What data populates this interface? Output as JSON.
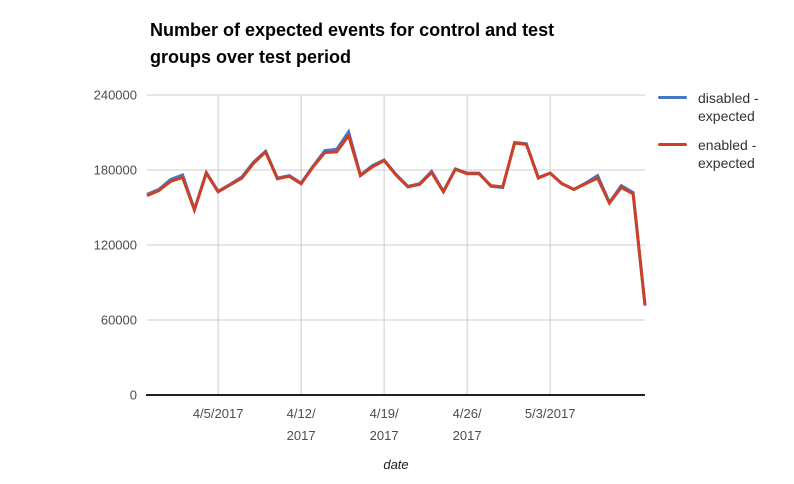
{
  "title": {
    "text": "Number of expected events for control and test groups over test period",
    "lines": [
      "Number of expected events for control and test",
      "groups over test period"
    ]
  },
  "legend": {
    "items": [
      {
        "label": "disabled - expected",
        "lines": [
          "disabled -",
          "expected"
        ],
        "color": "#4577c8"
      },
      {
        "label": "enabled - expected",
        "lines": [
          "enabled -",
          "expected"
        ],
        "color": "#cc4125"
      }
    ]
  },
  "axes": {
    "x_title": "date",
    "y_tick_labels": [
      "0",
      "60000",
      "120000",
      "180000",
      "240000"
    ],
    "x_tick_labels": [
      "4/5/2017",
      "4/12/2017",
      "4/19/2017",
      "4/26/2017",
      "5/3/2017"
    ]
  },
  "colors": {
    "gridline": "#cccccc",
    "baseline": "#212121",
    "tick_text": "#4d4d4d",
    "series_disabled": "#4577c8",
    "series_enabled": "#cc4125"
  },
  "chart_data": {
    "type": "line",
    "title": "Number of expected events for control and test groups over test period",
    "xlabel": "date",
    "ylabel": "",
    "grid": true,
    "legend_position": "right",
    "ylim": [
      0,
      240000
    ],
    "yticks": [
      0,
      60000,
      120000,
      180000,
      240000
    ],
    "x": [
      "3/30/2017",
      "3/31/2017",
      "4/1/2017",
      "4/2/2017",
      "4/3/2017",
      "4/4/2017",
      "4/5/2017",
      "4/6/2017",
      "4/7/2017",
      "4/8/2017",
      "4/9/2017",
      "4/10/2017",
      "4/11/2017",
      "4/12/2017",
      "4/13/2017",
      "4/14/2017",
      "4/15/2017",
      "4/16/2017",
      "4/17/2017",
      "4/18/2017",
      "4/19/2017",
      "4/20/2017",
      "4/21/2017",
      "4/22/2017",
      "4/23/2017",
      "4/24/2017",
      "4/25/2017",
      "4/26/2017",
      "4/27/2017",
      "4/28/2017",
      "4/29/2017",
      "4/30/2017",
      "5/1/2017",
      "5/2/2017",
      "5/3/2017",
      "5/4/2017",
      "5/5/2017",
      "5/6/2017",
      "5/7/2017",
      "5/8/2017",
      "5/9/2017",
      "5/10/2017",
      "5/11/2017"
    ],
    "xticks": [
      {
        "index": 6,
        "lines": [
          "4/5/2017"
        ]
      },
      {
        "index": 13,
        "lines": [
          "4/12/",
          "2017"
        ]
      },
      {
        "index": 20,
        "lines": [
          "4/19/",
          "2017"
        ]
      },
      {
        "index": 27,
        "lines": [
          "4/26/",
          "2017"
        ]
      },
      {
        "index": 34,
        "lines": [
          "5/3/2017"
        ]
      }
    ],
    "series": [
      {
        "name": "disabled - expected",
        "color": "#4577c8",
        "values": [
          160500,
          164500,
          172500,
          176000,
          148500,
          178000,
          163000,
          168500,
          174500,
          186500,
          195000,
          173500,
          175500,
          169500,
          183000,
          195500,
          196500,
          210500,
          176000,
          183500,
          188000,
          176500,
          167000,
          169000,
          179000,
          163000,
          181000,
          177500,
          177500,
          167000,
          166000,
          202000,
          201000,
          174000,
          177500,
          169000,
          164500,
          169500,
          175500,
          154000,
          167500,
          162000,
          72000
        ]
      },
      {
        "name": "enabled - expected",
        "color": "#cc4125",
        "values": [
          159500,
          163500,
          171000,
          174000,
          148000,
          177500,
          162500,
          168000,
          173500,
          185500,
          194500,
          173000,
          175000,
          169000,
          182500,
          194000,
          194500,
          207500,
          175500,
          182500,
          187500,
          176000,
          166500,
          168500,
          178000,
          162500,
          180500,
          177000,
          177000,
          167500,
          166500,
          201500,
          200500,
          173500,
          177500,
          169000,
          164500,
          169000,
          173500,
          153500,
          166000,
          161000,
          71500
        ]
      }
    ]
  }
}
